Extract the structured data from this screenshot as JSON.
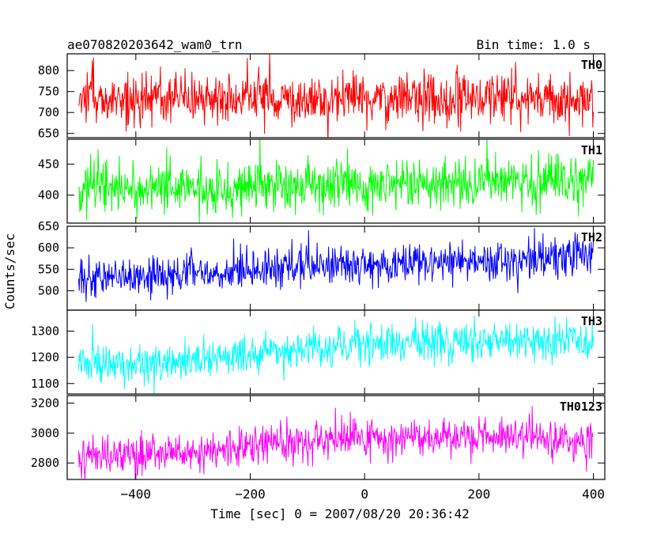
{
  "chart_data": {
    "type": "line",
    "title": "ae070820203642_wam0_trn",
    "subtitle": "Bin time: 1.0 s",
    "xlabel": "Time [sec] 0 = 2007/08/20 20:36:42",
    "ylabel": "Counts/sec",
    "xlim": [
      -520,
      420
    ],
    "xticks": [
      -400,
      -200,
      0,
      200,
      400
    ],
    "x_range": [
      -500,
      400
    ],
    "bin_time_s": 1.0,
    "panels": [
      {
        "name": "TH0",
        "color": "#ff0000",
        "ylim": [
          640,
          840
        ],
        "yticks": [
          650,
          700,
          750,
          800
        ],
        "trend": [
          [
            -500,
            735
          ],
          [
            -250,
            735
          ],
          [
            0,
            735
          ],
          [
            250,
            732
          ],
          [
            400,
            725
          ]
        ],
        "noise_sd": 32
      },
      {
        "name": "TH1",
        "color": "#00ff00",
        "ylim": [
          355,
          490
        ],
        "yticks": [
          400,
          450
        ],
        "trend": [
          [
            -500,
            412
          ],
          [
            -250,
            413
          ],
          [
            0,
            418
          ],
          [
            250,
            422
          ],
          [
            400,
            420
          ]
        ],
        "noise_sd": 22
      },
      {
        "name": "TH2",
        "color": "#0000ff",
        "ylim": [
          455,
          650
        ],
        "yticks": [
          500,
          550,
          600,
          650
        ],
        "trend": [
          [
            -500,
            525
          ],
          [
            -250,
            545
          ],
          [
            0,
            560
          ],
          [
            250,
            575
          ],
          [
            400,
            575
          ]
        ],
        "noise_sd": 23
      },
      {
        "name": "TH3",
        "color": "#00ffff",
        "ylim": [
          1060,
          1380
        ],
        "yticks": [
          1100,
          1200,
          1300
        ],
        "trend": [
          [
            -500,
            1170
          ],
          [
            -250,
            1200
          ],
          [
            0,
            1250
          ],
          [
            250,
            1270
          ],
          [
            400,
            1260
          ]
        ],
        "noise_sd": 38
      },
      {
        "name": "TH0123",
        "color": "#ff00ff",
        "ylim": [
          2690,
          3250
        ],
        "yticks": [
          2800,
          3000,
          3200
        ],
        "trend": [
          [
            -500,
            2840
          ],
          [
            -250,
            2880
          ],
          [
            -200,
            2930
          ],
          [
            0,
            2960
          ],
          [
            250,
            2970
          ],
          [
            400,
            2950
          ]
        ],
        "noise_sd": 65
      }
    ]
  }
}
